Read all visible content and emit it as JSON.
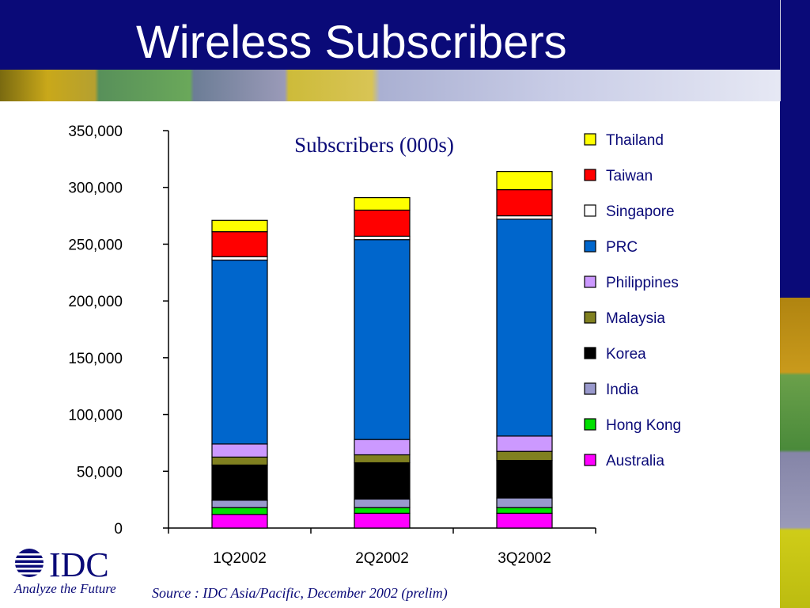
{
  "slide": {
    "title": "Wireless Subscribers",
    "slide_id": "SN19",
    "source": "Source : IDC Asia/Pacific, December 2002 (prelim)",
    "logo_name": "IDC",
    "logo_tagline": "Analyze the Future"
  },
  "chart_data": {
    "type": "bar",
    "stacked": true,
    "title": "Subscribers (000s)",
    "xlabel": "",
    "ylabel": "",
    "ylim": [
      0,
      350000
    ],
    "yticks": [
      0,
      50000,
      100000,
      150000,
      200000,
      250000,
      300000,
      350000
    ],
    "ytick_labels": [
      "0",
      "50,000",
      "100,000",
      "150,000",
      "200,000",
      "250,000",
      "300,000",
      "350,000"
    ],
    "categories": [
      "1Q2002",
      "2Q2002",
      "3Q2002"
    ],
    "legend_position": "right",
    "grid": false,
    "series": [
      {
        "name": "Australia",
        "color": "#ff00ff",
        "values": [
          12000,
          13000,
          13000
        ]
      },
      {
        "name": "Hong Kong",
        "color": "#00e000",
        "values": [
          6000,
          5000,
          5000
        ]
      },
      {
        "name": "India",
        "color": "#9999cc",
        "values": [
          6500,
          7500,
          8500
        ]
      },
      {
        "name": "Korea",
        "color": "#000000",
        "values": [
          31000,
          32000,
          33000
        ]
      },
      {
        "name": "Malaysia",
        "color": "#808020",
        "values": [
          7000,
          7000,
          8000
        ]
      },
      {
        "name": "Philippines",
        "color": "#cc99ff",
        "values": [
          11500,
          13500,
          13500
        ]
      },
      {
        "name": "PRC",
        "color": "#0066cc",
        "values": [
          162000,
          176000,
          191000
        ]
      },
      {
        "name": "Singapore",
        "color": "#ffffff",
        "values": [
          3000,
          3000,
          3000
        ]
      },
      {
        "name": "Taiwan",
        "color": "#ff0000",
        "values": [
          22000,
          23000,
          23000
        ]
      },
      {
        "name": "Thailand",
        "color": "#ffff00",
        "values": [
          10000,
          11000,
          16000
        ]
      }
    ]
  }
}
